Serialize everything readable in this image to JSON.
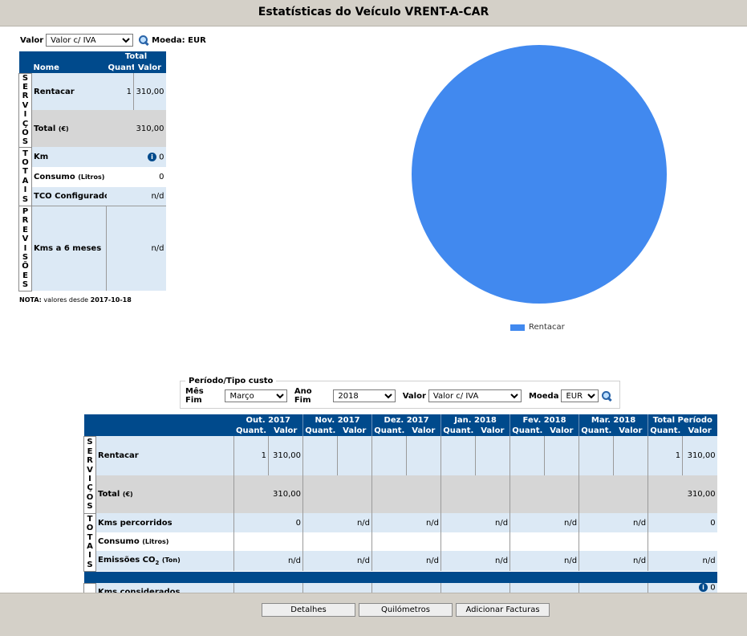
{
  "window": {
    "title": "Estatísticas do Veículo VRENT-A-CAR"
  },
  "top_controls": {
    "valor_label": "Valor",
    "valor_selected": "Valor c/ IVA",
    "moeda_label": "Moeda:",
    "moeda_value": "EUR"
  },
  "summary": {
    "header_total": "Total",
    "col_nome": "Nome",
    "col_quant": "Quant.",
    "col_valor": "Valor",
    "group_servicos": "SERVIÇOS",
    "group_totais": "TOTAIS",
    "group_previsoes": "PREVISÕES",
    "rentacar": {
      "label": "Rentacar",
      "quant": "1",
      "valor": "310,00"
    },
    "total": {
      "label": "Total",
      "unit": "(€)",
      "valor": "310,00"
    },
    "km": {
      "label": "Km",
      "info": "i",
      "valor": "0"
    },
    "consumo": {
      "label": "Consumo",
      "unit": "(Litros)",
      "valor": "0"
    },
    "tco": {
      "label": "TCO Configurado",
      "valor": "n/d"
    },
    "kms6": {
      "label": "Kms a 6 meses",
      "valor": "n/d"
    }
  },
  "nota": {
    "prefix": "NOTA:",
    "text": " valores desde ",
    "date": "2017-10-18"
  },
  "chart_data": {
    "type": "pie",
    "categories": [
      "Rentacar"
    ],
    "values": [
      310.0
    ],
    "colors": [
      "#4189ef"
    ],
    "legend_position": "bottom"
  },
  "period": {
    "legend": "Período/Tipo custo",
    "mes_fim_label": "Mês Fim",
    "mes_fim_value": "Março",
    "ano_fim_label": "Ano Fim",
    "ano_fim_value": "2018",
    "valor_label": "Valor",
    "valor_value": "Valor c/ IVA",
    "moeda_label": "Moeda",
    "moeda_value": "EUR"
  },
  "monthly": {
    "months": [
      "Out. 2017",
      "Nov. 2017",
      "Dez. 2017",
      "Jan. 2018",
      "Fev. 2018",
      "Mar. 2018",
      "Total Período"
    ],
    "quant_label": "Quant.",
    "valor_label": "Valor",
    "group_servicos": "SERVIÇOS",
    "group_totais": "TOTAIS",
    "rentacar": {
      "label": "Rentacar",
      "quant": [
        "1",
        "",
        "",
        "",
        "",
        "",
        "1"
      ],
      "valor": [
        "310,00",
        "",
        "",
        "",
        "",
        "",
        "310,00"
      ]
    },
    "total": {
      "label": "Total",
      "unit": "(€)",
      "values": [
        "310,00",
        "",
        "",
        "",
        "",
        "",
        "310,00"
      ]
    },
    "kms_percorridos": {
      "label": "Kms percorridos",
      "values": [
        "0",
        "n/d",
        "n/d",
        "n/d",
        "n/d",
        "n/d",
        "0"
      ]
    },
    "consumo": {
      "label": "Consumo",
      "unit": "(Litros)",
      "values": [
        "",
        "",
        "",
        "",
        "",
        "",
        ""
      ]
    },
    "emissoes": {
      "label": "Emissões CO",
      "sub": "2",
      "unit": "(Ton)",
      "values": [
        "n/d",
        "n/d",
        "n/d",
        "n/d",
        "n/d",
        "n/d",
        "n/d"
      ]
    },
    "kms_considerados": {
      "label": "Kms considerados",
      "info": "i",
      "total": "0"
    }
  },
  "buttons": {
    "detalhes": "Detalhes",
    "quilometros": "Quilómetros",
    "adicionar": "Adicionar Facturas"
  }
}
